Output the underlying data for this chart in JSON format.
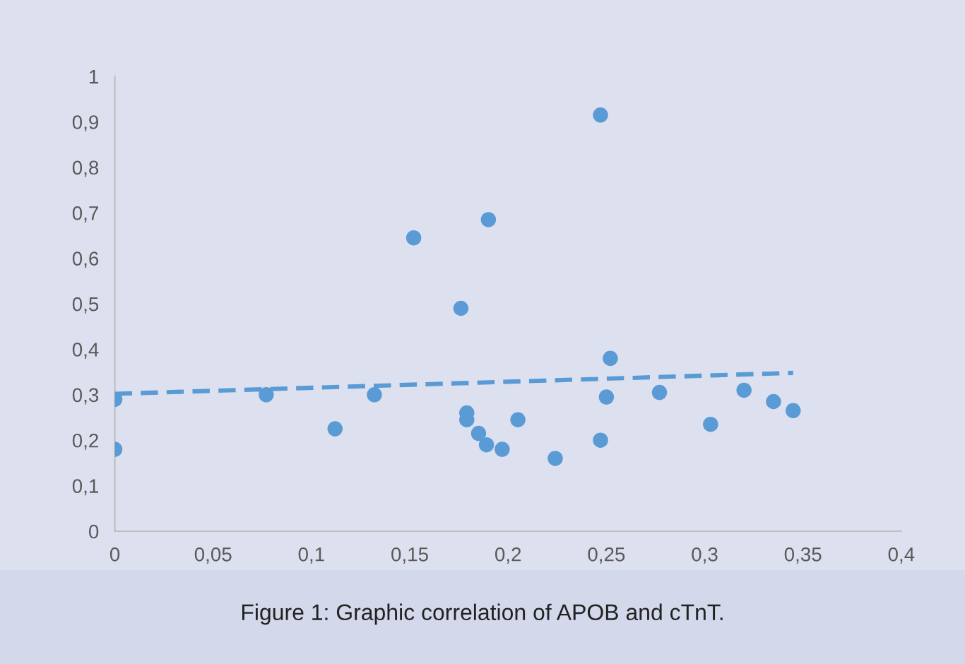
{
  "chart_data": {
    "type": "scatter",
    "annotations": [
      "Figure 1: Graphic correlation of APOB and cTnT."
    ],
    "series": [
      {
        "color": "#5b9bd5",
        "marker": "circle",
        "x": [
          0,
          0,
          0.077,
          0.112,
          0.132,
          0.152,
          0.176,
          0.179,
          0.179,
          0.185,
          0.19,
          0.189,
          0.197,
          0.205,
          0.224,
          0.247,
          0.247,
          0.25,
          0.252,
          0.277,
          0.303,
          0.32,
          0.335,
          0.345
        ],
        "values": [
          0.29,
          0.18,
          0.3,
          0.225,
          0.3,
          0.645,
          0.49,
          0.26,
          0.245,
          0.215,
          0.685,
          0.19,
          0.18,
          0.245,
          0.16,
          0.915,
          0.2,
          0.295,
          0.38,
          0.305,
          0.235,
          0.31,
          0.285,
          0.265
        ]
      },
      {
        "type": "line",
        "color": "#5b9bd5",
        "line_style": "dashed",
        "x": [
          0,
          0.345
        ],
        "values": [
          0.302,
          0.348
        ]
      }
    ],
    "xlim": [
      0,
      0.4
    ],
    "xticks": [
      0,
      {
        "value": 0.05,
        "label": "0,05"
      },
      {
        "value": 0.1,
        "label": "0,1"
      },
      {
        "value": 0.15,
        "label": "0,15"
      },
      {
        "value": 0.2,
        "label": "0,2"
      },
      {
        "value": 0.25,
        "label": "0,25"
      },
      {
        "value": 0.3,
        "label": "0,3"
      },
      {
        "value": 0.35,
        "label": "0,35"
      },
      {
        "value": 0.4,
        "label": "0,4"
      }
    ],
    "ylim": [
      0,
      1
    ],
    "yticks": [
      0,
      {
        "value": 0.1,
        "label": "0,1"
      },
      {
        "value": 0.2,
        "label": "0,2"
      },
      {
        "value": 0.3,
        "label": "0,3"
      },
      {
        "value": 0.4,
        "label": "0,4"
      },
      {
        "value": 0.5,
        "label": "0,5"
      },
      {
        "value": 0.6,
        "label": "0,6"
      },
      {
        "value": 0.7,
        "label": "0,7"
      },
      {
        "value": 0.8,
        "label": "0,8"
      },
      {
        "value": 0.9,
        "label": "0,9"
      },
      1
    ],
    "grid": false,
    "legend": false
  }
}
